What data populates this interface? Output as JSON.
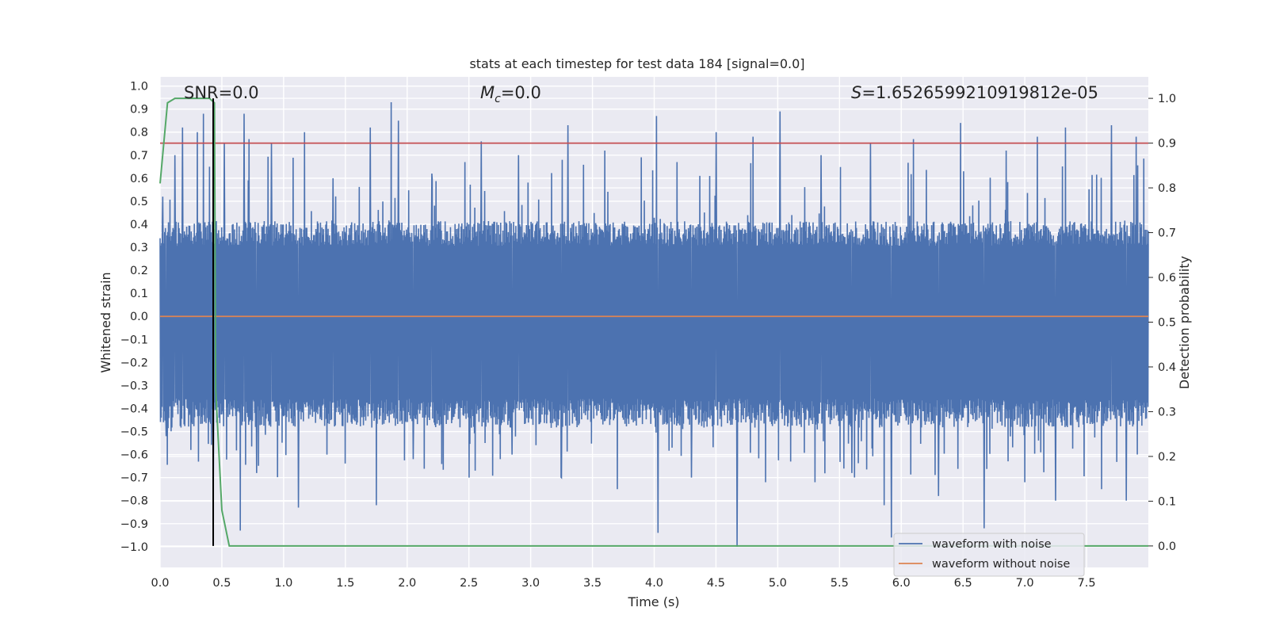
{
  "chart_data": {
    "type": "line",
    "title": "stats at each timestep for test data 184 [signal=0.0]",
    "xlabel": "Time (s)",
    "ylabel_left": "Whitened strain",
    "ylabel_right": "Detection probability",
    "xlim": [
      0.0,
      8.0
    ],
    "ylim_left": [
      -1.09,
      1.04
    ],
    "ylim_right": [
      -0.048,
      1.048
    ],
    "xticks": [
      "0.0",
      "0.5",
      "1.0",
      "1.5",
      "2.0",
      "2.5",
      "3.0",
      "3.5",
      "4.0",
      "4.5",
      "5.0",
      "5.5",
      "6.0",
      "6.5",
      "7.0",
      "7.5"
    ],
    "yticks_left": [
      "1.0",
      "0.9",
      "0.8",
      "0.7",
      "0.6",
      "0.5",
      "0.4",
      "0.3",
      "0.2",
      "0.1",
      "0.0",
      "−0.1",
      "−0.2",
      "−0.3",
      "−0.4",
      "−0.5",
      "−0.6",
      "−0.7",
      "−0.8",
      "−0.9",
      "−1.0"
    ],
    "yticks_right": [
      "1.0",
      "0.9",
      "0.8",
      "0.7",
      "0.6",
      "0.5",
      "0.4",
      "0.3",
      "0.2",
      "0.1",
      "0.0"
    ],
    "annotations": {
      "snr": "SNR=0.0",
      "mc_symbol": "M",
      "mc_sub": "c",
      "mc_value": "=0.0",
      "s_symbol": "S",
      "s_value": "=1.6526599210919812e-05"
    },
    "threshold": 0.9,
    "marker_time": 0.43,
    "noisy_waveform": {
      "name": "waveform with noise",
      "color": "#4c72b0",
      "envelope_high": 0.36,
      "envelope_low": -0.42,
      "peaks": [
        {
          "x": 0.02,
          "y": 0.52
        },
        {
          "x": 0.12,
          "y": 0.7
        },
        {
          "x": 0.18,
          "y": 0.82
        },
        {
          "x": 0.25,
          "y": 0.86
        },
        {
          "x": 0.3,
          "y": 0.8
        },
        {
          "x": 0.35,
          "y": 0.88
        },
        {
          "x": 0.4,
          "y": 0.65
        },
        {
          "x": 0.52,
          "y": 0.75
        },
        {
          "x": 0.68,
          "y": 0.88
        },
        {
          "x": 0.72,
          "y": 0.77
        },
        {
          "x": 0.9,
          "y": 0.75
        },
        {
          "x": 1.17,
          "y": 0.8
        },
        {
          "x": 1.4,
          "y": 0.6
        },
        {
          "x": 1.7,
          "y": 0.82
        },
        {
          "x": 1.87,
          "y": 0.93
        },
        {
          "x": 1.93,
          "y": 0.85
        },
        {
          "x": 2.2,
          "y": 0.62
        },
        {
          "x": 2.6,
          "y": 0.76
        },
        {
          "x": 2.9,
          "y": 0.7
        },
        {
          "x": 3.3,
          "y": 0.83
        },
        {
          "x": 3.6,
          "y": 0.72
        },
        {
          "x": 4.02,
          "y": 0.87
        },
        {
          "x": 4.5,
          "y": 0.8
        },
        {
          "x": 4.8,
          "y": 0.78
        },
        {
          "x": 5.02,
          "y": 0.89
        },
        {
          "x": 5.35,
          "y": 0.7
        },
        {
          "x": 5.75,
          "y": 0.75
        },
        {
          "x": 6.1,
          "y": 0.77
        },
        {
          "x": 6.48,
          "y": 0.84
        },
        {
          "x": 6.85,
          "y": 0.72
        },
        {
          "x": 7.1,
          "y": 0.78
        },
        {
          "x": 7.33,
          "y": 0.82
        },
        {
          "x": 7.7,
          "y": 0.83
        },
        {
          "x": 7.9,
          "y": 0.78
        }
      ],
      "troughs": [
        {
          "x": 0.05,
          "y": -0.52
        },
        {
          "x": 0.25,
          "y": -0.58
        },
        {
          "x": 0.43,
          "y": -0.75
        },
        {
          "x": 0.65,
          "y": -0.93
        },
        {
          "x": 0.78,
          "y": -0.68
        },
        {
          "x": 1.12,
          "y": -0.83
        },
        {
          "x": 1.35,
          "y": -0.6
        },
        {
          "x": 1.75,
          "y": -0.82
        },
        {
          "x": 2.05,
          "y": -0.62
        },
        {
          "x": 2.5,
          "y": -0.7
        },
        {
          "x": 2.85,
          "y": -0.6
        },
        {
          "x": 3.25,
          "y": -0.7
        },
        {
          "x": 3.7,
          "y": -0.75
        },
        {
          "x": 4.03,
          "y": -0.94
        },
        {
          "x": 4.3,
          "y": -0.7
        },
        {
          "x": 4.67,
          "y": -1.0
        },
        {
          "x": 4.9,
          "y": -0.72
        },
        {
          "x": 5.3,
          "y": -0.72
        },
        {
          "x": 5.6,
          "y": -0.68
        },
        {
          "x": 5.86,
          "y": -0.82
        },
        {
          "x": 5.92,
          "y": -0.96
        },
        {
          "x": 6.3,
          "y": -0.78
        },
        {
          "x": 6.67,
          "y": -0.92
        },
        {
          "x": 7.0,
          "y": -0.72
        },
        {
          "x": 7.25,
          "y": -0.8
        },
        {
          "x": 7.62,
          "y": -0.75
        },
        {
          "x": 7.82,
          "y": -0.8
        }
      ]
    },
    "clean_waveform": {
      "name": "waveform without noise",
      "color": "#dd8452",
      "x": [
        0.0,
        8.0
      ],
      "y": [
        0.0,
        0.0
      ]
    },
    "detection_probability": {
      "color": "#55a868",
      "x": [
        0.0,
        0.06,
        0.12,
        0.2,
        0.3,
        0.4,
        0.44,
        0.45,
        0.5,
        0.56,
        0.6,
        8.0
      ],
      "y": [
        0.81,
        0.99,
        1.0,
        1.0,
        1.0,
        1.0,
        0.99,
        0.35,
        0.08,
        0.0,
        0.0,
        0.0
      ]
    },
    "threshold_color": "#c44e52",
    "marker_color": "#000000",
    "legend_position": "lower-right"
  }
}
